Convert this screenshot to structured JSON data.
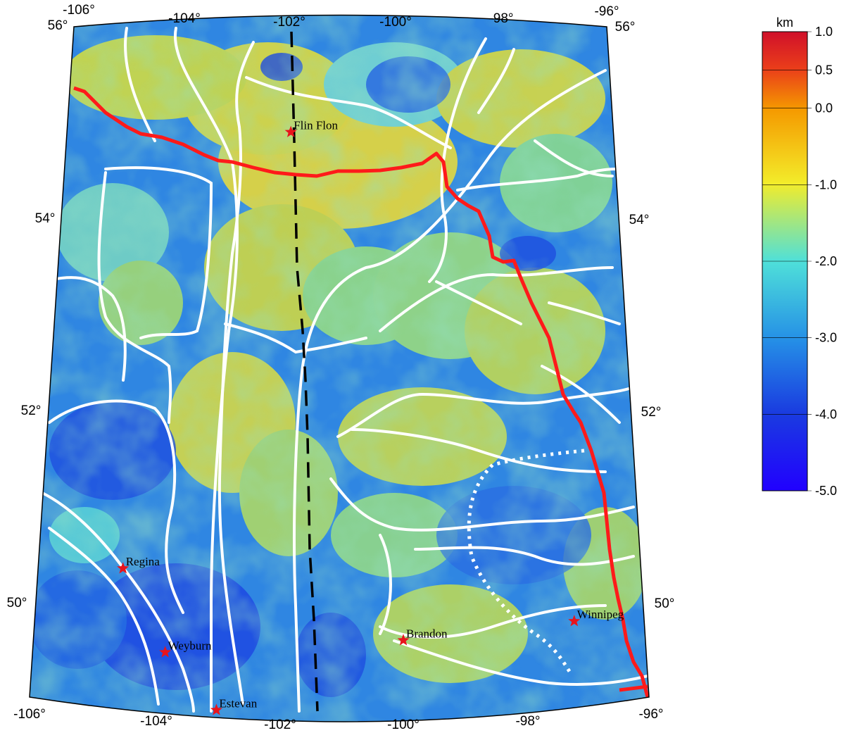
{
  "map": {
    "lon_labels_top": [
      "-106°",
      "-104°",
      "-102°",
      "-100°",
      "-98°",
      "-96°"
    ],
    "lon_labels_bottom": [
      "-106°",
      "-104°",
      "-102°",
      "-100°",
      "-98°",
      "-96°"
    ],
    "lat_labels_left": [
      "56°",
      "54°",
      "52°",
      "50°"
    ],
    "lat_labels_right": [
      "56°",
      "54°",
      "52°",
      "50°"
    ],
    "extent": {
      "lon_min": -106,
      "lon_max": -96,
      "lat_min": 49,
      "lat_max": 56
    },
    "cities": [
      {
        "name": "Flin Flon",
        "lon": -101.9,
        "lat": 54.77
      },
      {
        "name": "Regina",
        "lon": -104.6,
        "lat": 50.45
      },
      {
        "name": "Weyburn",
        "lon": -103.85,
        "lat": 49.66
      },
      {
        "name": "Estevan",
        "lon": -102.99,
        "lat": 49.14
      },
      {
        "name": "Brandon",
        "lon": -99.95,
        "lat": 49.85
      },
      {
        "name": "Winnipeg",
        "lon": -97.14,
        "lat": 49.9
      }
    ],
    "legend": {
      "unit": "km",
      "ticks": [
        "1.0",
        "0.5",
        "0.0",
        "-1.0",
        "-2.0",
        "-3.0",
        "-4.0",
        "-5.0"
      ],
      "colors": [
        "#d7191c",
        "#e85a1c",
        "#f7a200",
        "#f2e421",
        "#4fd6d3",
        "#1f78e0",
        "#1020e0",
        "#1a00ff"
      ]
    },
    "colors": {
      "boundary_red": "#ff1a1a",
      "structure_white": "#ffffff",
      "profile_black": "#000000"
    }
  }
}
